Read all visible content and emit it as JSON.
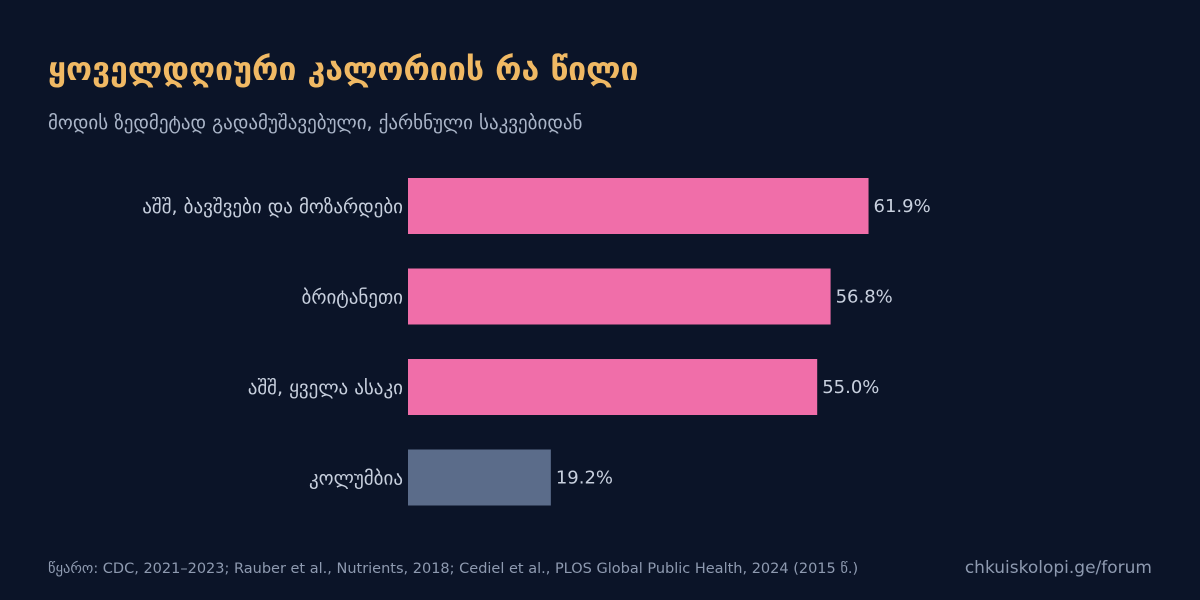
{
  "header": {
    "title": "ყოველდღიური კალორიის რა წილი",
    "subtitle": "მოდის ზედმეტად გადამუშავებული, ქარხნული საკვებიდან"
  },
  "chart_data": {
    "type": "bar",
    "orientation": "horizontal",
    "categories": [
      "აშშ, ბავშვები და მოზარდები",
      "ბრიტანეთი",
      "აშშ, ყველა ასაკი",
      "კოლუმბია"
    ],
    "values": [
      61.9,
      56.8,
      55.0,
      19.2
    ],
    "value_labels": [
      "61.9%",
      "56.8%",
      "55.0%",
      "19.2%"
    ],
    "unit": "%",
    "xlim": [
      0,
      100
    ],
    "grid": false,
    "colors": {
      "highlight": "#f06ea9",
      "muted": "#5b6c8a"
    },
    "bar_colors": [
      "highlight",
      "highlight",
      "highlight",
      "muted"
    ]
  },
  "footer": {
    "source": "წყარო: CDC, 2021–2023; Rauber et al., Nutrients, 2018; Cediel et al., PLOS Global Public Health, 2024 (2015 წ.)",
    "site": "chkuiskolopi.ge/forum"
  },
  "theme": {
    "background": "#0b1428",
    "title_color": "#f0b964",
    "text_color": "#c8d0de"
  }
}
